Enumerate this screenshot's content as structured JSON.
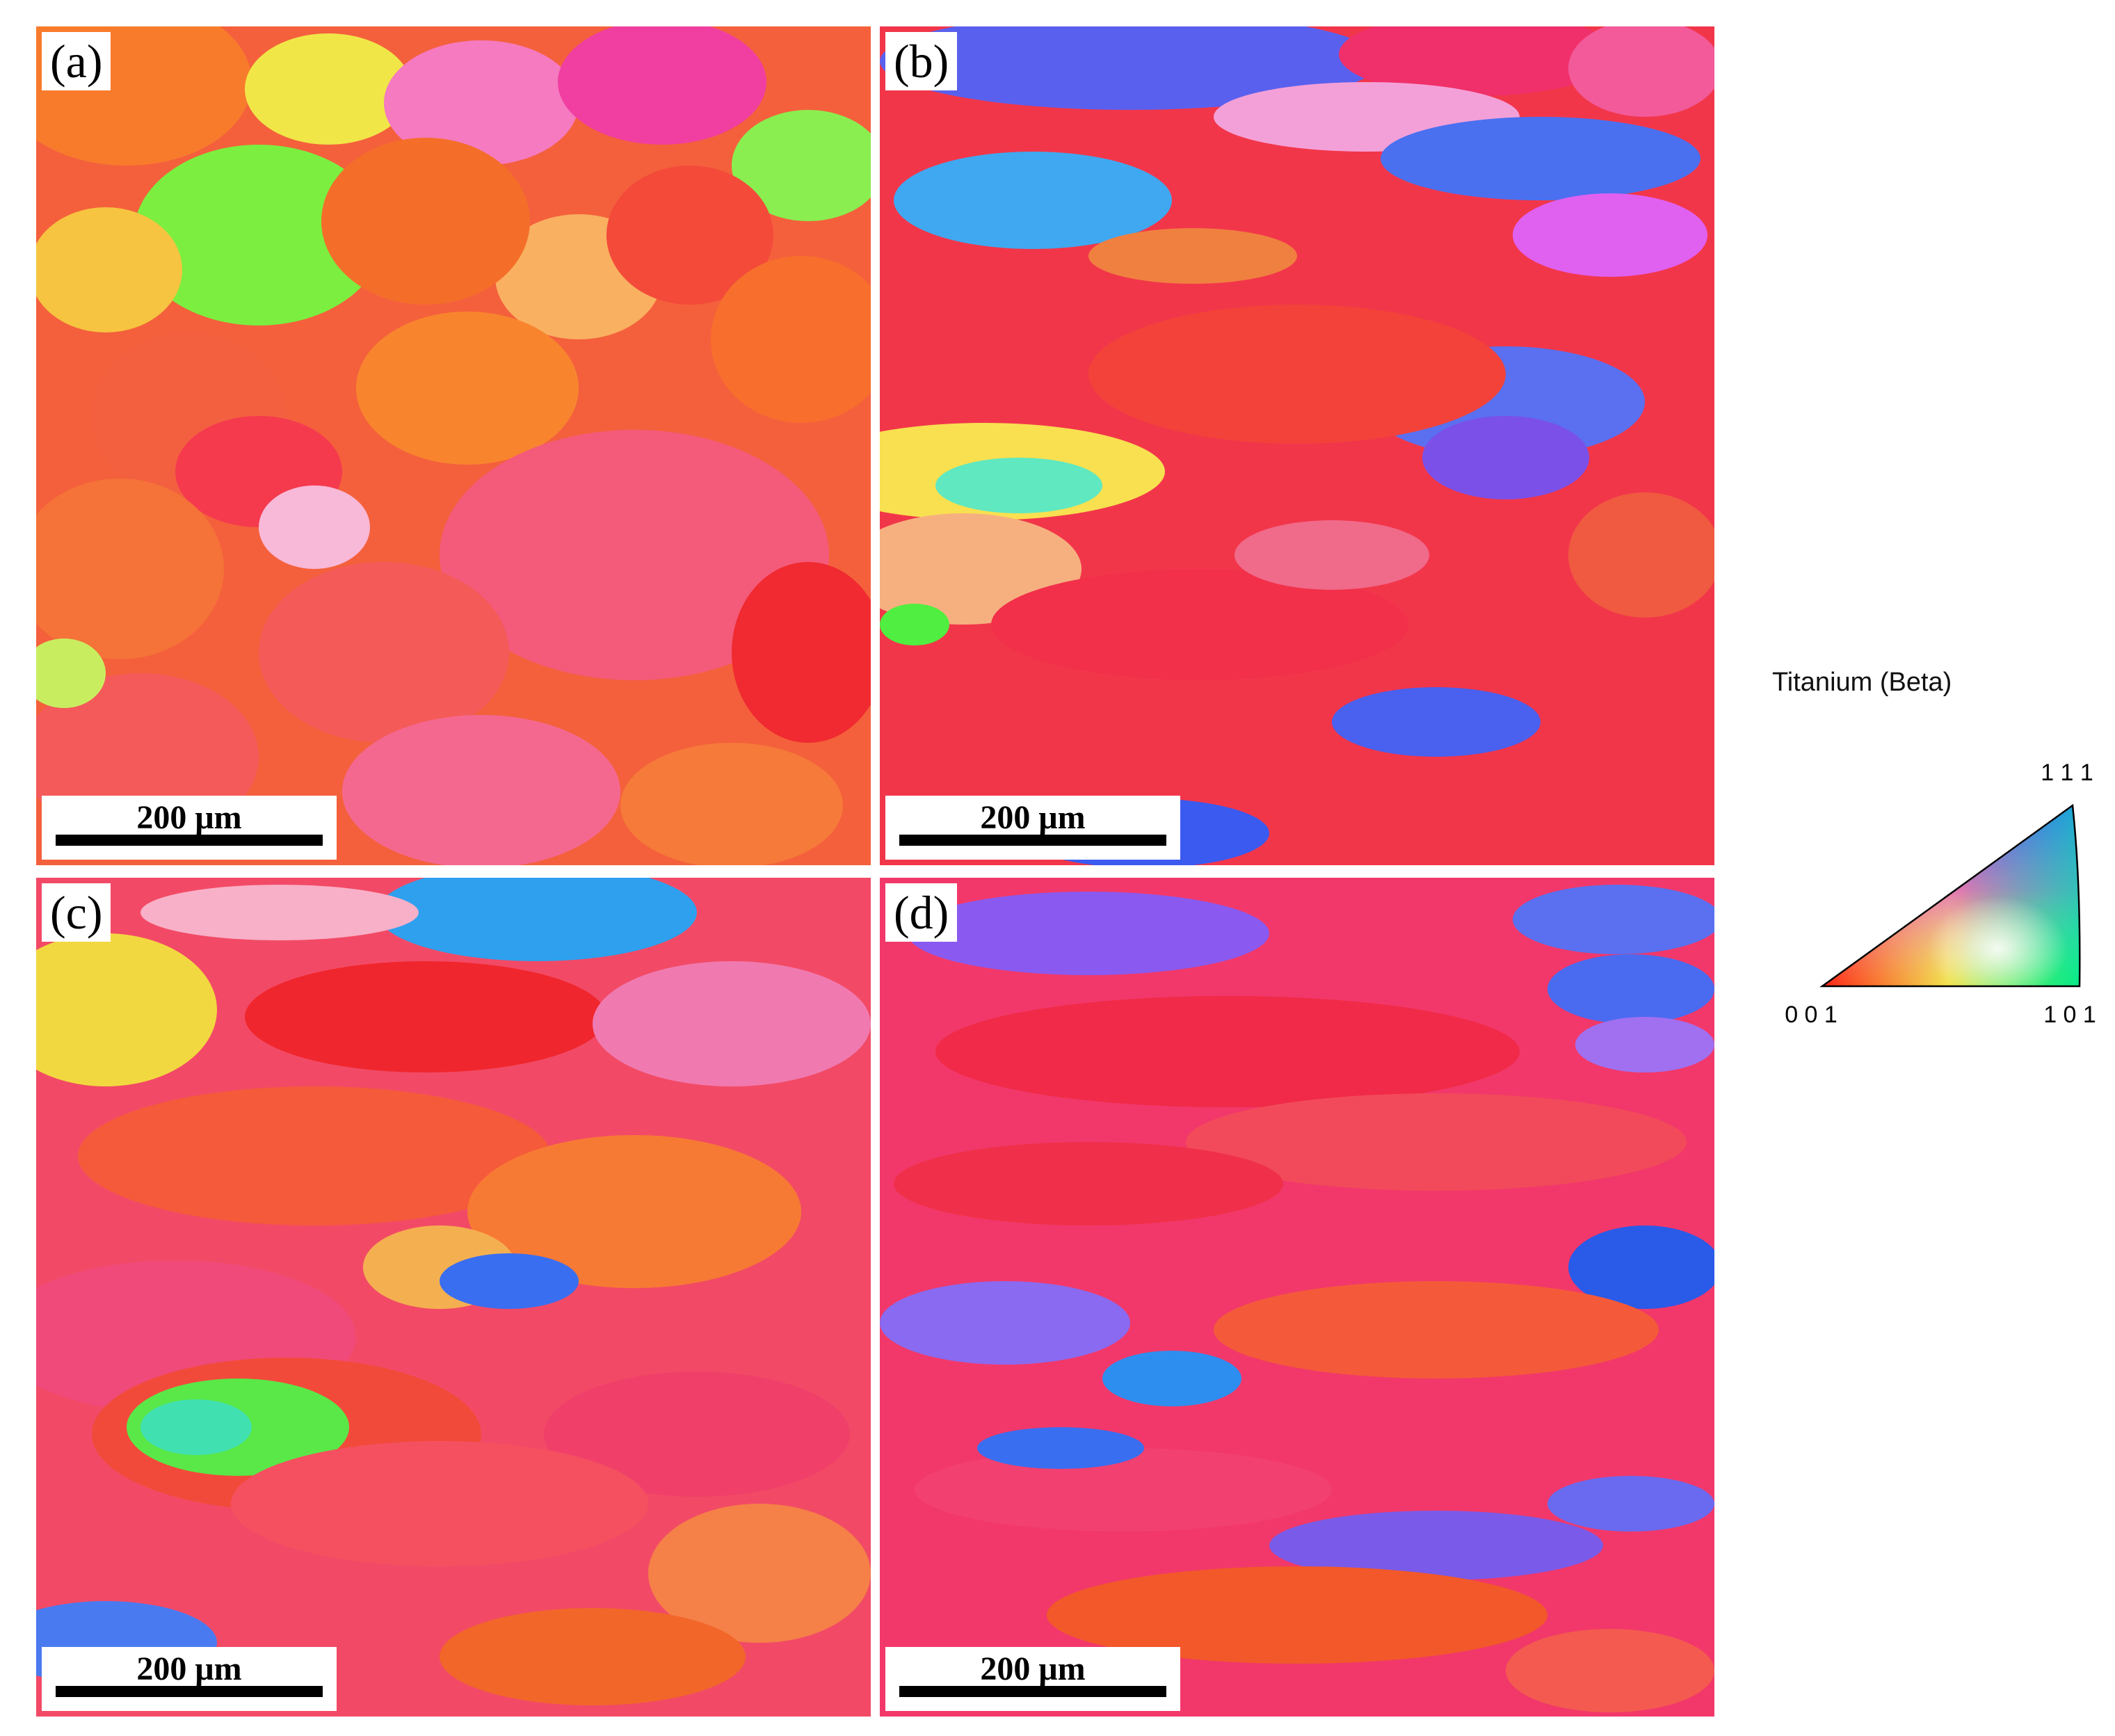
{
  "panels": [
    {
      "id": "a",
      "label": "(a)",
      "scale_label": "200 μm"
    },
    {
      "id": "b",
      "label": "(b)",
      "scale_label": "200 μm"
    },
    {
      "id": "c",
      "label": "(c)",
      "scale_label": "200 μm"
    },
    {
      "id": "d",
      "label": "(d)",
      "scale_label": "200 μm"
    }
  ],
  "legend": {
    "title": "Titanium (Beta)",
    "corner_111": "1 1 1",
    "corner_001": "0 0 1",
    "corner_101": "1 0 1"
  },
  "colors": {
    "red": "#f0273a",
    "pink": "#f0507a",
    "orange": "#f77a2a",
    "green": "#6ef03a",
    "blue": "#3a6ef0",
    "violet": "#8a5af0",
    "magenta": "#f05af0",
    "yellow": "#f0e040"
  }
}
